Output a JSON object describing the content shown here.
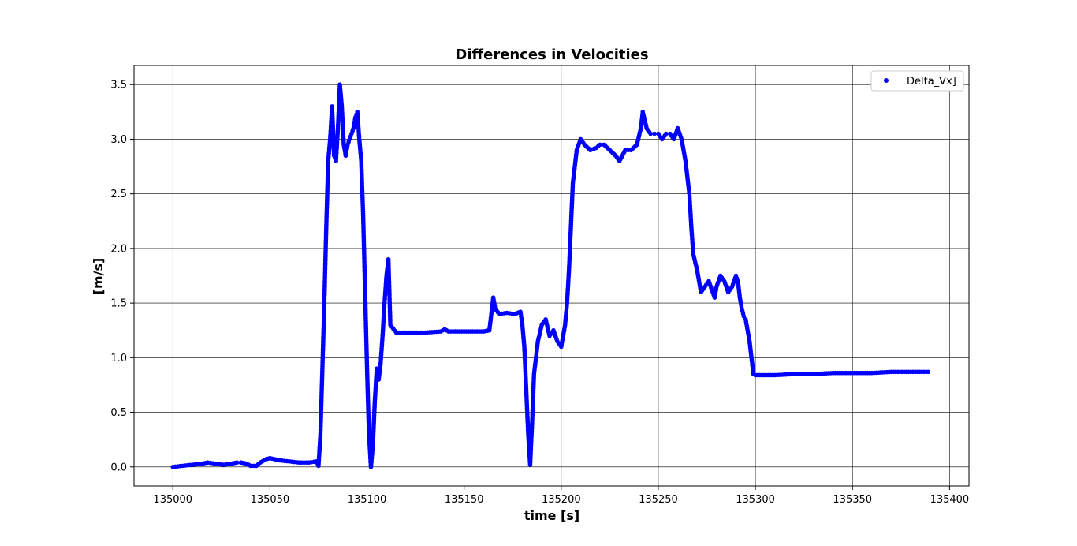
{
  "chart_data": {
    "type": "scatter",
    "title": "Differences in Velocities",
    "xlabel": "time [s]",
    "ylabel": "[m/s]",
    "xlim": [
      134980,
      135410
    ],
    "ylim": [
      -0.175,
      3.675
    ],
    "xticks": [
      135000,
      135050,
      135100,
      135150,
      135200,
      135250,
      135300,
      135350,
      135400
    ],
    "xtick_labels": [
      "135000",
      "135050",
      "135100",
      "135150",
      "135200",
      "135250",
      "135300",
      "135350",
      "135400"
    ],
    "yticks": [
      0.0,
      0.5,
      1.0,
      1.5,
      2.0,
      2.5,
      3.0,
      3.5
    ],
    "ytick_labels": [
      "0.0",
      "0.5",
      "1.0",
      "1.5",
      "2.0",
      "2.5",
      "3.0",
      "3.5"
    ],
    "grid": true,
    "legend_position": "top-right",
    "series": [
      {
        "name": "Delta_Vx]",
        "color": "#0000ff",
        "marker": "circle",
        "x": [
          135000,
          135005,
          135010,
          135015,
          135018,
          135022,
          135026,
          135030,
          135033,
          135035,
          135038,
          135040,
          135043,
          135045,
          135048,
          135050,
          135055,
          135060,
          135065,
          135070,
          135074,
          135075,
          135076,
          135077,
          135078,
          135079,
          135080,
          135081,
          135082,
          135083,
          135084,
          135085,
          135086,
          135087,
          135088,
          135089,
          135090,
          135091,
          135092,
          135093,
          135094,
          135095,
          135096,
          135097,
          135098,
          135099,
          135100,
          135101,
          135102,
          135103,
          135104,
          135105,
          135106,
          135107,
          135108,
          135109,
          135110,
          135111,
          135112,
          135115,
          135120,
          135130,
          135138,
          135140,
          135142,
          135150,
          135160,
          135163,
          135164,
          135165,
          135166,
          135168,
          135172,
          135176,
          135179,
          135180,
          135181,
          135182,
          135183,
          135184,
          135185,
          135186,
          135188,
          135190,
          135192,
          135194,
          135196,
          135198,
          135200,
          135201,
          135202,
          135203,
          135204,
          135205,
          135206,
          135208,
          135210,
          135212,
          135215,
          135218,
          135220,
          135222,
          135225,
          135228,
          135230,
          135233,
          135236,
          135239,
          135241,
          135242,
          135244,
          135246,
          135248,
          135250,
          135252,
          135254,
          135256,
          135258,
          135260,
          135262,
          135264,
          135266,
          135267,
          135268,
          135270,
          135272,
          135274,
          135276,
          135278,
          135279,
          135280,
          135282,
          135284,
          135286,
          135288,
          135290,
          135291,
          135292,
          135293,
          135294,
          135295,
          135296,
          135297,
          135298,
          135299,
          135300,
          135310,
          135320,
          135330,
          135340,
          135350,
          135360,
          135370,
          135380,
          135389
        ],
        "y": [
          0.0,
          0.01,
          0.02,
          0.03,
          0.04,
          0.03,
          0.02,
          0.03,
          0.04,
          0.04,
          0.03,
          0.01,
          0.01,
          0.04,
          0.07,
          0.08,
          0.06,
          0.05,
          0.04,
          0.04,
          0.05,
          0.01,
          0.3,
          0.9,
          1.5,
          2.2,
          2.8,
          3.0,
          3.3,
          2.85,
          2.8,
          3.1,
          3.5,
          3.3,
          2.95,
          2.85,
          2.95,
          3.0,
          3.05,
          3.1,
          3.2,
          3.25,
          3.0,
          2.8,
          2.3,
          1.6,
          0.9,
          0.3,
          0.0,
          0.2,
          0.6,
          0.9,
          0.8,
          0.95,
          1.2,
          1.5,
          1.75,
          1.9,
          1.3,
          1.23,
          1.23,
          1.23,
          1.24,
          1.26,
          1.24,
          1.24,
          1.24,
          1.25,
          1.4,
          1.55,
          1.45,
          1.4,
          1.41,
          1.4,
          1.42,
          1.3,
          1.1,
          0.7,
          0.3,
          0.02,
          0.4,
          0.85,
          1.15,
          1.3,
          1.35,
          1.2,
          1.25,
          1.15,
          1.1,
          1.2,
          1.3,
          1.5,
          1.8,
          2.2,
          2.6,
          2.9,
          3.0,
          2.95,
          2.9,
          2.92,
          2.95,
          2.95,
          2.9,
          2.85,
          2.8,
          2.9,
          2.9,
          2.95,
          3.1,
          3.25,
          3.1,
          3.05,
          3.05,
          3.05,
          3.0,
          3.05,
          3.05,
          3.0,
          3.1,
          3.0,
          2.8,
          2.5,
          2.2,
          1.95,
          1.8,
          1.6,
          1.65,
          1.7,
          1.6,
          1.55,
          1.65,
          1.75,
          1.7,
          1.6,
          1.65,
          1.75,
          1.7,
          1.55,
          1.45,
          1.38,
          1.35,
          1.25,
          1.15,
          1.0,
          0.85,
          0.84,
          0.84,
          0.85,
          0.85,
          0.86,
          0.86,
          0.86,
          0.87,
          0.87,
          0.87
        ]
      }
    ]
  }
}
